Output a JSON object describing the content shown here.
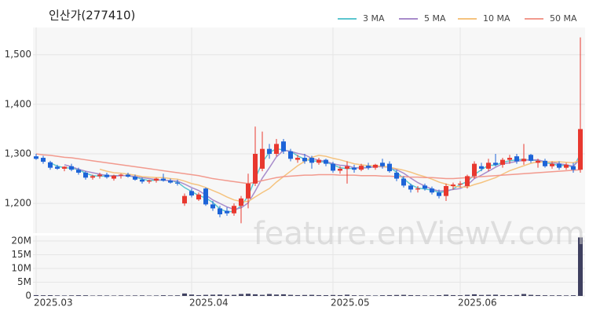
{
  "chart_data": {
    "type": "candlestick",
    "title": "인산가(277410)",
    "watermark": "feature.enViewV.com",
    "categories": [
      "2025.03",
      null,
      null,
      null,
      null,
      null,
      null,
      null,
      null,
      null,
      null,
      null,
      null,
      null,
      null,
      null,
      null,
      null,
      null,
      null,
      null,
      null,
      "2025.04",
      null,
      null,
      null,
      null,
      null,
      null,
      null,
      null,
      null,
      null,
      null,
      null,
      null,
      null,
      null,
      null,
      null,
      null,
      null,
      "2025.05",
      null,
      null,
      null,
      null,
      null,
      null,
      null,
      null,
      null,
      null,
      null,
      null,
      null,
      null,
      null,
      null,
      null,
      "2025.06",
      null,
      null,
      null,
      null,
      null,
      null,
      null,
      null,
      null,
      null,
      null,
      null,
      null,
      null,
      null,
      null,
      null
    ],
    "open": [
      1295,
      1292,
      1283,
      1274,
      1270,
      1275,
      1268,
      1262,
      1252,
      1255,
      1258,
      1250,
      1256,
      1258,
      1254,
      1248,
      1244,
      1246,
      1250,
      1246,
      1242,
      1200,
      1225,
      1208,
      1230,
      1198,
      1190,
      1185,
      1180,
      1195,
      1210,
      1240,
      1270,
      1310,
      1300,
      1325,
      1305,
      1288,
      1292,
      1292,
      1282,
      1288,
      1280,
      1266,
      1270,
      1272,
      1268,
      1276,
      1272,
      1282,
      1280,
      1262,
      1250,
      1236,
      1228,
      1236,
      1230,
      1222,
      1215,
      1235,
      1238,
      1235,
      1255,
      1275,
      1270,
      1282,
      1278,
      1288,
      1295,
      1285,
      1298,
      1282,
      1286,
      1275,
      1280,
      1272,
      1275,
      1268
    ],
    "high": [
      1300,
      1296,
      1286,
      1278,
      1275,
      1280,
      1272,
      1265,
      1258,
      1262,
      1262,
      1258,
      1260,
      1262,
      1258,
      1252,
      1248,
      1252,
      1260,
      1250,
      1248,
      1220,
      1230,
      1222,
      1232,
      1205,
      1195,
      1192,
      1200,
      1215,
      1260,
      1355,
      1345,
      1320,
      1330,
      1330,
      1310,
      1298,
      1300,
      1296,
      1292,
      1290,
      1284,
      1275,
      1285,
      1278,
      1280,
      1282,
      1280,
      1290,
      1285,
      1268,
      1255,
      1240,
      1235,
      1240,
      1234,
      1228,
      1240,
      1242,
      1245,
      1258,
      1285,
      1282,
      1290,
      1300,
      1292,
      1298,
      1300,
      1320,
      1300,
      1290,
      1290,
      1285,
      1285,
      1282,
      1282,
      1535
    ],
    "low": [
      1288,
      1280,
      1268,
      1268,
      1265,
      1265,
      1258,
      1248,
      1248,
      1250,
      1250,
      1246,
      1250,
      1252,
      1246,
      1240,
      1240,
      1242,
      1244,
      1240,
      1236,
      1195,
      1212,
      1205,
      1195,
      1185,
      1172,
      1175,
      1175,
      1160,
      1190,
      1235,
      1265,
      1290,
      1295,
      1300,
      1285,
      1282,
      1280,
      1270,
      1278,
      1275,
      1262,
      1260,
      1240,
      1262,
      1265,
      1268,
      1268,
      1270,
      1262,
      1245,
      1232,
      1222,
      1222,
      1226,
      1218,
      1210,
      1205,
      1228,
      1232,
      1230,
      1250,
      1265,
      1265,
      1275,
      1272,
      1280,
      1280,
      1278,
      1282,
      1272,
      1272,
      1270,
      1268,
      1268,
      1262,
      1262
    ],
    "close": [
      1290,
      1284,
      1272,
      1270,
      1274,
      1268,
      1262,
      1252,
      1255,
      1258,
      1253,
      1256,
      1258,
      1254,
      1248,
      1244,
      1246,
      1250,
      1246,
      1242,
      1240,
      1215,
      1216,
      1218,
      1198,
      1190,
      1178,
      1180,
      1195,
      1210,
      1240,
      1300,
      1310,
      1300,
      1320,
      1305,
      1290,
      1292,
      1285,
      1282,
      1288,
      1280,
      1266,
      1270,
      1275,
      1268,
      1276,
      1272,
      1278,
      1275,
      1265,
      1250,
      1236,
      1228,
      1230,
      1230,
      1222,
      1215,
      1235,
      1238,
      1240,
      1255,
      1280,
      1270,
      1282,
      1278,
      1288,
      1292,
      1285,
      1290,
      1286,
      1286,
      1275,
      1280,
      1272,
      1278,
      1268,
      1350
    ],
    "up_color": "#e8382f",
    "down_color": "#1d64d8",
    "series": [
      {
        "name": "3 MA",
        "color": "#5cc6cf",
        "values": [
          null,
          null,
          1282,
          1275,
          1272,
          1271,
          1268,
          1261,
          1256,
          1255,
          1255,
          1256,
          1256,
          1256,
          1253,
          1249,
          1246,
          1247,
          1247,
          1246,
          1243,
          1232,
          1224,
          1216,
          1211,
          1202,
          1189,
          1183,
          1184,
          1195,
          1215,
          1250,
          1283,
          1303,
          1310,
          1308,
          1305,
          1296,
          1289,
          1286,
          1285,
          1283,
          1278,
          1272,
          1270,
          1271,
          1273,
          1272,
          1275,
          1275,
          1273,
          1263,
          1250,
          1238,
          1231,
          1229,
          1227,
          1222,
          1224,
          1229,
          1238,
          1244,
          1258,
          1268,
          1277,
          1277,
          1283,
          1286,
          1288,
          1289,
          1287,
          1287,
          1282,
          1280,
          1276,
          1277,
          1273,
          1299
        ]
      },
      {
        "name": "5 MA",
        "color": "#a88ccb",
        "values": [
          null,
          null,
          null,
          null,
          1278,
          1274,
          1269,
          1265,
          1262,
          1259,
          1256,
          1255,
          1256,
          1256,
          1254,
          1252,
          1250,
          1248,
          1247,
          1246,
          1245,
          1239,
          1232,
          1226,
          1217,
          1207,
          1200,
          1193,
          1188,
          1191,
          1201,
          1225,
          1251,
          1272,
          1294,
          1307,
          1305,
          1301,
          1298,
          1291,
          1287,
          1285,
          1280,
          1277,
          1276,
          1272,
          1271,
          1272,
          1274,
          1274,
          1273,
          1268,
          1261,
          1251,
          1242,
          1235,
          1229,
          1225,
          1226,
          1228,
          1230,
          1237,
          1250,
          1257,
          1265,
          1273,
          1280,
          1282,
          1285,
          1287,
          1288,
          1288,
          1284,
          1283,
          1280,
          1278,
          1275,
          1290
        ]
      },
      {
        "name": "10 MA",
        "color": "#f5c37f",
        "values": [
          null,
          null,
          null,
          null,
          null,
          null,
          null,
          null,
          null,
          1269,
          1265,
          1262,
          1261,
          1259,
          1257,
          1254,
          1253,
          1252,
          1252,
          1250,
          1249,
          1245,
          1240,
          1237,
          1232,
          1226,
          1220,
          1213,
          1207,
          1204,
          1204,
          1213,
          1222,
          1230,
          1243,
          1254,
          1265,
          1276,
          1285,
          1293,
          1297,
          1295,
          1291,
          1288,
          1284,
          1280,
          1278,
          1276,
          1276,
          1275,
          1273,
          1270,
          1267,
          1263,
          1258,
          1254,
          1249,
          1243,
          1239,
          1235,
          1233,
          1233,
          1238,
          1242,
          1247,
          1252,
          1259,
          1266,
          1271,
          1276,
          1281,
          1284,
          1283,
          1284,
          1284,
          1283,
          1282,
          1287
        ]
      },
      {
        "name": "50 MA",
        "color": "#f29a8e",
        "values": [
          1300,
          1298,
          1297,
          1295,
          1293,
          1292,
          1290,
          1288,
          1286,
          1284,
          1282,
          1280,
          1278,
          1276,
          1274,
          1272,
          1270,
          1268,
          1266,
          1264,
          1262,
          1260,
          1258,
          1256,
          1253,
          1250,
          1248,
          1246,
          1244,
          1242,
          1240,
          1243,
          1246,
          1249,
          1252,
          1254,
          1255,
          1256,
          1257,
          1257,
          1258,
          1258,
          1258,
          1257,
          1257,
          1257,
          1256,
          1256,
          1256,
          1255,
          1255,
          1254,
          1254,
          1253,
          1253,
          1252,
          1252,
          1251,
          1250,
          1250,
          1251,
          1252,
          1253,
          1254,
          1255,
          1256,
          1257,
          1258,
          1259,
          1260,
          1261,
          1262,
          1263,
          1264,
          1265,
          1266,
          1267,
          1268
        ]
      }
    ],
    "ylim": [
      1140,
      1555
    ],
    "yticks": [
      {
        "value": 1200,
        "label": "1,200"
      },
      {
        "value": 1300,
        "label": "1,300"
      },
      {
        "value": 1400,
        "label": "1,400"
      },
      {
        "value": 1500,
        "label": "1,500"
      }
    ],
    "grid": true,
    "volume": {
      "color": "#3f4060",
      "ylim": [
        0,
        22000000
      ],
      "yticks": [
        0,
        {
          "value": 5000000,
          "label": "5M"
        },
        {
          "value": 10000000,
          "label": "10M"
        },
        {
          "value": 15000000,
          "label": "15M"
        },
        {
          "value": 20000000,
          "label": "20M"
        }
      ],
      "values": [
        300000,
        250000,
        280000,
        200000,
        180000,
        220000,
        260000,
        240000,
        150000,
        200000,
        180000,
        160000,
        200000,
        170000,
        190000,
        210000,
        150000,
        180000,
        260000,
        200000,
        230000,
        900000,
        500000,
        300000,
        400000,
        450000,
        500000,
        350000,
        400000,
        700000,
        800000,
        600000,
        400000,
        700000,
        500000,
        600000,
        400000,
        300000,
        350000,
        400000,
        300000,
        280000,
        350000,
        300000,
        450000,
        250000,
        220000,
        200000,
        180000,
        260000,
        300000,
        350000,
        400000,
        300000,
        250000,
        200000,
        220000,
        280000,
        450000,
        300000,
        250000,
        400000,
        600000,
        350000,
        400000,
        450000,
        300000,
        280000,
        350000,
        700000,
        400000,
        300000,
        250000,
        220000,
        240000,
        200000,
        260000,
        21300000
      ]
    }
  }
}
